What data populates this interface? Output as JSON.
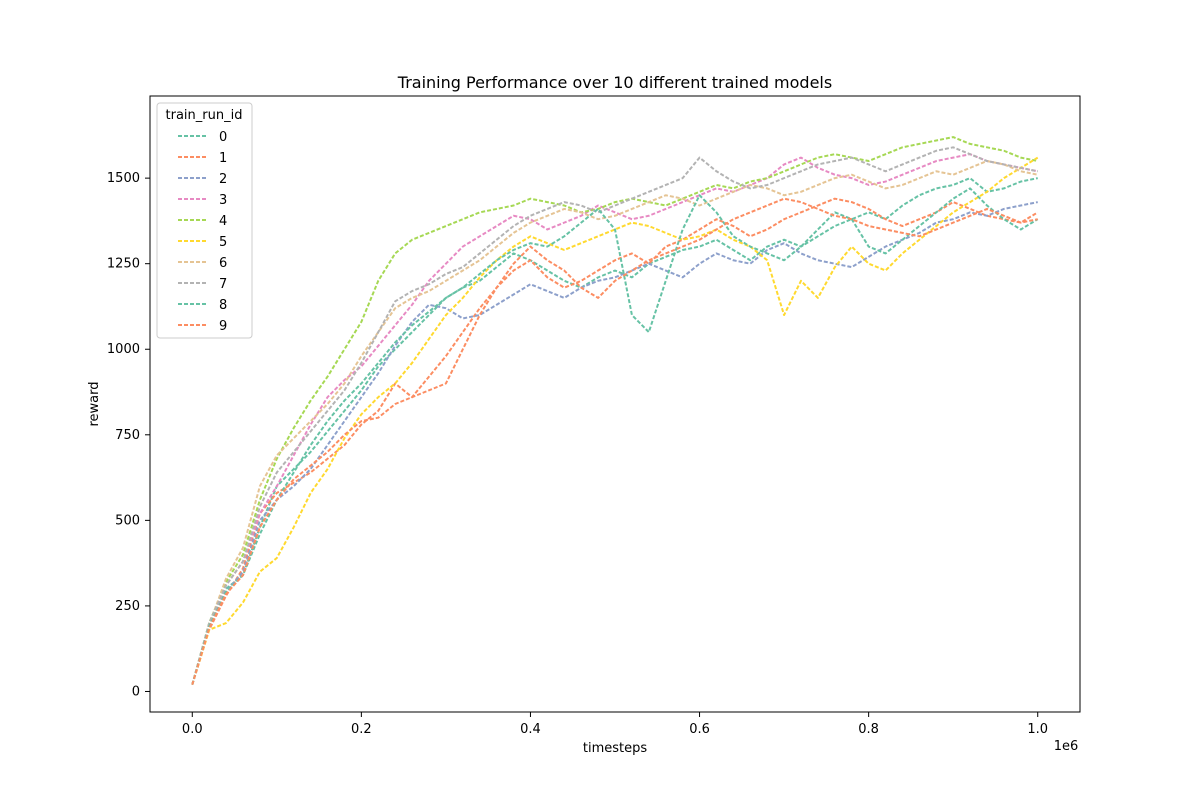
{
  "chart_data": {
    "type": "line",
    "title": "Training Performance over 10 different trained models",
    "xlabel": "timesteps",
    "ylabel": "reward",
    "x_offset_label": "1e6",
    "xlim": [
      -50000,
      1050000
    ],
    "ylim": [
      -60,
      1740
    ],
    "xticks": [
      0,
      200000,
      400000,
      600000,
      800000,
      1000000
    ],
    "xtick_labels": [
      "0.0",
      "0.2",
      "0.4",
      "0.6",
      "0.8",
      "1.0"
    ],
    "yticks": [
      0,
      250,
      500,
      750,
      1000,
      1250,
      1500
    ],
    "ytick_labels": [
      "0",
      "250",
      "500",
      "750",
      "1000",
      "1250",
      "1500"
    ],
    "grid": false,
    "legend": {
      "title": "train_run_id",
      "placement": "upper-left"
    },
    "x": [
      0,
      20000,
      40000,
      60000,
      80000,
      100000,
      120000,
      140000,
      160000,
      180000,
      200000,
      220000,
      240000,
      260000,
      280000,
      300000,
      320000,
      340000,
      360000,
      380000,
      400000,
      420000,
      440000,
      460000,
      480000,
      500000,
      520000,
      540000,
      560000,
      580000,
      600000,
      620000,
      640000,
      660000,
      680000,
      700000,
      720000,
      740000,
      760000,
      780000,
      800000,
      820000,
      840000,
      860000,
      880000,
      900000,
      920000,
      940000,
      960000,
      980000,
      1000000
    ],
    "series": [
      {
        "name": "0",
        "color": "#66c2a5",
        "values": [
          20,
          190,
          300,
          340,
          480,
          600,
          650,
          700,
          760,
          820,
          880,
          950,
          1000,
          1050,
          1100,
          1150,
          1180,
          1200,
          1240,
          1280,
          1260,
          1230,
          1200,
          1180,
          1210,
          1230,
          1210,
          1250,
          1270,
          1290,
          1300,
          1320,
          1290,
          1260,
          1300,
          1320,
          1300,
          1330,
          1360,
          1380,
          1400,
          1380,
          1420,
          1450,
          1470,
          1480,
          1500,
          1460,
          1470,
          1490,
          1500
        ]
      },
      {
        "name": "1",
        "color": "#fc8d62",
        "values": [
          20,
          180,
          280,
          360,
          520,
          580,
          610,
          640,
          680,
          720,
          780,
          820,
          900,
          860,
          920,
          980,
          1050,
          1120,
          1180,
          1230,
          1260,
          1210,
          1180,
          1200,
          1230,
          1260,
          1280,
          1250,
          1300,
          1320,
          1350,
          1380,
          1360,
          1330,
          1350,
          1380,
          1400,
          1420,
          1440,
          1430,
          1410,
          1380,
          1360,
          1380,
          1400,
          1430,
          1410,
          1390,
          1380,
          1370,
          1400
        ]
      },
      {
        "name": "2",
        "color": "#8da0cb",
        "values": [
          20,
          185,
          290,
          350,
          500,
          560,
          600,
          650,
          720,
          790,
          860,
          930,
          1010,
          1080,
          1130,
          1120,
          1090,
          1100,
          1130,
          1160,
          1190,
          1170,
          1150,
          1180,
          1200,
          1210,
          1230,
          1250,
          1230,
          1210,
          1250,
          1280,
          1260,
          1250,
          1290,
          1310,
          1280,
          1260,
          1250,
          1240,
          1270,
          1300,
          1320,
          1340,
          1370,
          1380,
          1400,
          1390,
          1410,
          1420,
          1430
        ]
      },
      {
        "name": "3",
        "color": "#e78ac3",
        "values": [
          20,
          195,
          310,
          380,
          520,
          600,
          690,
          780,
          860,
          910,
          950,
          1010,
          1070,
          1130,
          1200,
          1250,
          1300,
          1330,
          1360,
          1390,
          1380,
          1350,
          1370,
          1390,
          1420,
          1400,
          1380,
          1390,
          1410,
          1430,
          1450,
          1470,
          1460,
          1480,
          1500,
          1540,
          1560,
          1530,
          1510,
          1500,
          1480,
          1490,
          1510,
          1530,
          1550,
          1560,
          1570,
          1550,
          1540,
          1530,
          1520
        ]
      },
      {
        "name": "4",
        "color": "#a6d854",
        "values": [
          20,
          200,
          320,
          400,
          560,
          680,
          770,
          850,
          920,
          1000,
          1080,
          1200,
          1280,
          1320,
          1340,
          1360,
          1380,
          1400,
          1410,
          1420,
          1440,
          1430,
          1420,
          1400,
          1410,
          1430,
          1440,
          1430,
          1420,
          1440,
          1460,
          1480,
          1470,
          1490,
          1500,
          1520,
          1540,
          1560,
          1570,
          1560,
          1550,
          1570,
          1590,
          1600,
          1610,
          1620,
          1600,
          1590,
          1580,
          1560,
          1550
        ]
      },
      {
        "name": "5",
        "color": "#ffd92f",
        "values": [
          20,
          180,
          200,
          260,
          350,
          390,
          480,
          580,
          650,
          740,
          810,
          860,
          900,
          960,
          1030,
          1100,
          1150,
          1210,
          1260,
          1300,
          1330,
          1310,
          1290,
          1310,
          1330,
          1350,
          1370,
          1360,
          1340,
          1320,
          1330,
          1350,
          1320,
          1300,
          1260,
          1100,
          1200,
          1150,
          1240,
          1300,
          1250,
          1230,
          1280,
          1320,
          1360,
          1400,
          1430,
          1460,
          1500,
          1530,
          1560
        ]
      },
      {
        "name": "6",
        "color": "#e5c494",
        "values": [
          20,
          195,
          330,
          420,
          600,
          690,
          740,
          790,
          840,
          900,
          980,
          1050,
          1120,
          1150,
          1170,
          1200,
          1230,
          1260,
          1300,
          1340,
          1370,
          1390,
          1410,
          1400,
          1380,
          1390,
          1410,
          1430,
          1450,
          1440,
          1420,
          1440,
          1460,
          1480,
          1470,
          1450,
          1460,
          1480,
          1500,
          1510,
          1490,
          1470,
          1480,
          1500,
          1520,
          1510,
          1530,
          1550,
          1540,
          1520,
          1510
        ]
      },
      {
        "name": "7",
        "color": "#b3b3b3",
        "values": [
          20,
          200,
          310,
          380,
          540,
          640,
          700,
          760,
          820,
          880,
          960,
          1050,
          1140,
          1170,
          1190,
          1220,
          1240,
          1280,
          1320,
          1360,
          1390,
          1410,
          1430,
          1420,
          1400,
          1420,
          1440,
          1460,
          1480,
          1500,
          1560,
          1520,
          1490,
          1470,
          1480,
          1500,
          1520,
          1540,
          1550,
          1560,
          1540,
          1520,
          1540,
          1560,
          1580,
          1590,
          1570,
          1550,
          1540,
          1530,
          1520
        ]
      },
      {
        "name": "8",
        "color": "#66c2a5",
        "values": [
          20,
          190,
          290,
          340,
          460,
          560,
          640,
          720,
          790,
          850,
          900,
          960,
          1020,
          1070,
          1110,
          1150,
          1180,
          1220,
          1260,
          1290,
          1310,
          1300,
          1330,
          1370,
          1410,
          1350,
          1100,
          1050,
          1200,
          1350,
          1450,
          1400,
          1330,
          1300,
          1280,
          1260,
          1300,
          1350,
          1400,
          1380,
          1300,
          1280,
          1320,
          1360,
          1400,
          1440,
          1470,
          1420,
          1380,
          1350,
          1380
        ]
      },
      {
        "name": "9",
        "color": "#fc8d62",
        "values": [
          20,
          185,
          285,
          340,
          480,
          560,
          620,
          660,
          700,
          750,
          790,
          800,
          840,
          860,
          880,
          900,
          1000,
          1100,
          1180,
          1250,
          1300,
          1260,
          1230,
          1180,
          1150,
          1200,
          1230,
          1260,
          1280,
          1300,
          1320,
          1350,
          1380,
          1400,
          1420,
          1440,
          1430,
          1410,
          1390,
          1380,
          1360,
          1350,
          1340,
          1330,
          1350,
          1370,
          1390,
          1410,
          1390,
          1370,
          1380
        ]
      }
    ]
  }
}
